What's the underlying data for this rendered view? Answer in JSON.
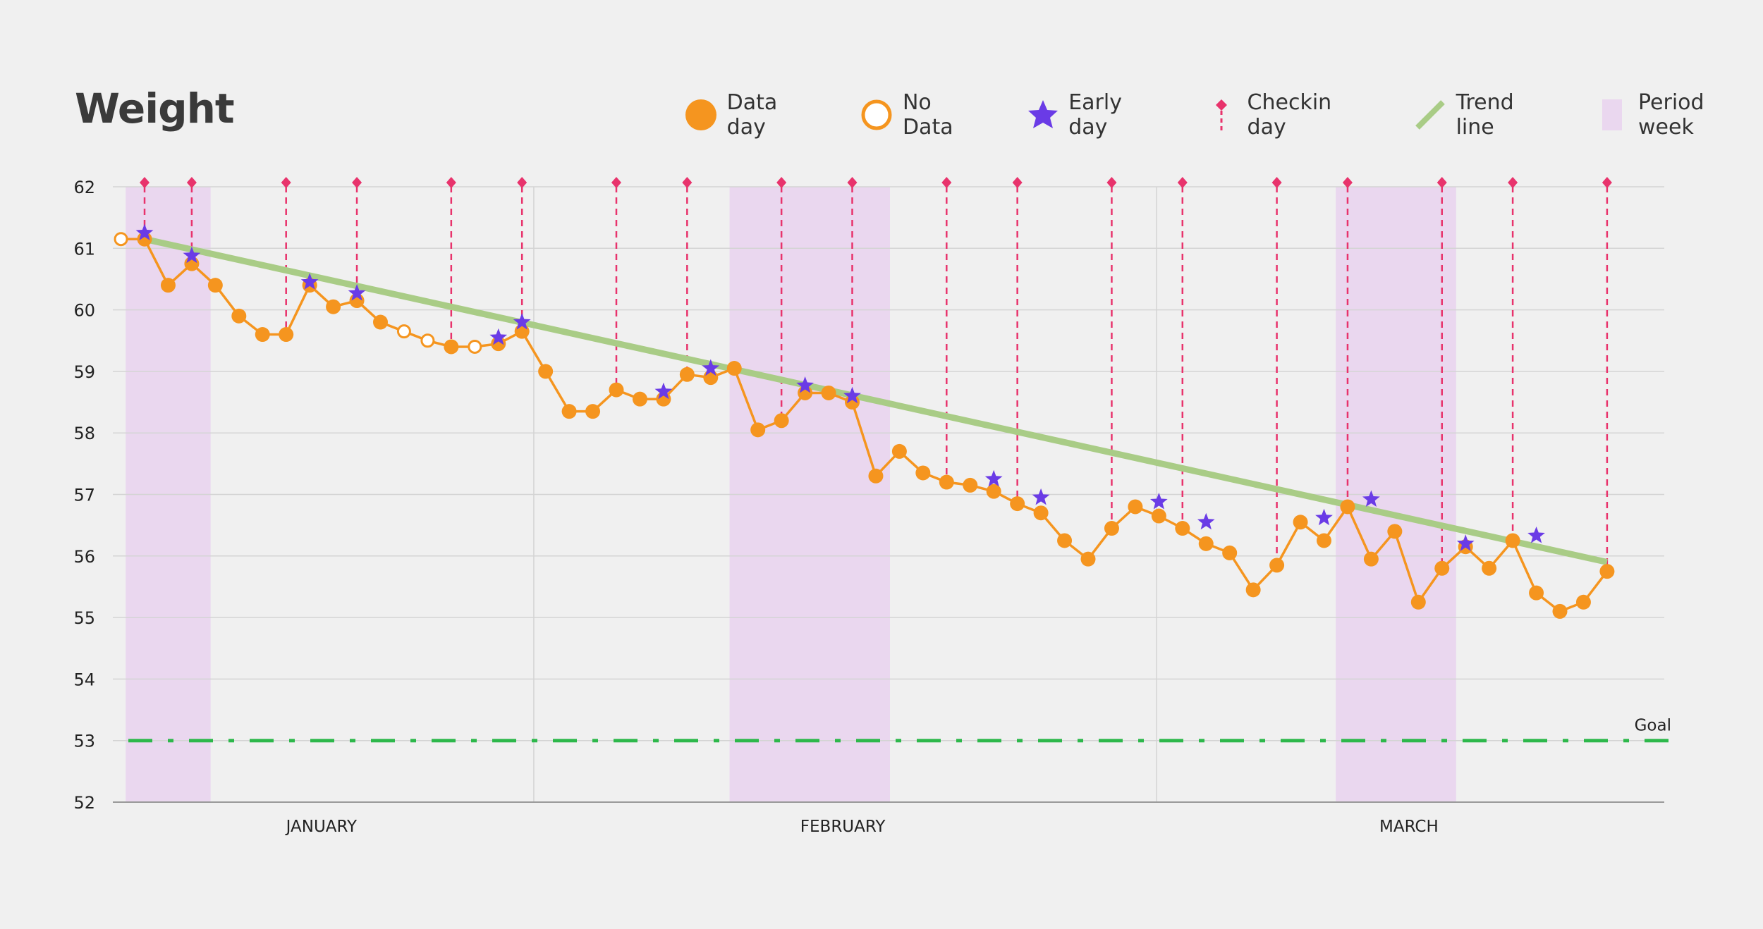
{
  "title": "Weight",
  "legend": [
    {
      "key": "data",
      "label": "Data day",
      "icon": "orange-filled-circle"
    },
    {
      "key": "nodata",
      "label": "No Data",
      "icon": "orange-hollow-circle"
    },
    {
      "key": "early",
      "label": "Early day",
      "icon": "purple-star"
    },
    {
      "key": "checkin",
      "label": "Checkin day",
      "icon": "pink-diamond-dashed-line"
    },
    {
      "key": "trend",
      "label": "Trend line",
      "icon": "green-diagonal-line"
    },
    {
      "key": "period",
      "label": "Period week",
      "icon": "lavender-rectangle"
    }
  ],
  "colors": {
    "data": "#f5951f",
    "early": "#6a3be6",
    "checkin": "#e8336c",
    "trend": "#a9cc86",
    "period": "#ead7ef",
    "goal": "#2db84b",
    "grid": "#d4d4d4",
    "axis": "#999999",
    "text": "#222222"
  },
  "chart_data": {
    "type": "line",
    "ylim": [
      52,
      62
    ],
    "yticks": [
      62,
      61,
      60,
      59,
      58,
      57,
      56,
      55,
      54,
      53,
      52
    ],
    "xlim": [
      -1,
      64
    ],
    "month_labels": [
      {
        "label": "JANUARY",
        "x": 7.5
      },
      {
        "label": "FEBRUARY",
        "x": 29.6
      },
      {
        "label": "MARCH",
        "x": 53.6
      }
    ],
    "month_dividers": [
      16.5,
      42.9
    ],
    "goal": {
      "label": "Goal",
      "value": 53
    },
    "trend": {
      "x": [
        0,
        62
      ],
      "y": [
        61.15,
        55.9
      ]
    },
    "period_weeks": [
      [
        -0.8,
        2.8
      ],
      [
        24.8,
        31.6
      ],
      [
        50.5,
        55.6
      ]
    ],
    "checkin_days": [
      0,
      2,
      6,
      9,
      13,
      16,
      20,
      23,
      27,
      30,
      34,
      37,
      41,
      44,
      48,
      51,
      55,
      58,
      62
    ],
    "series": {
      "x": [
        -1,
        0,
        1,
        2,
        3,
        4,
        5,
        6,
        7,
        8,
        9,
        10,
        11,
        12,
        13,
        14,
        15,
        16,
        17,
        18,
        19,
        20,
        21,
        22,
        23,
        24,
        25,
        26,
        27,
        28,
        29,
        30,
        31,
        32,
        33,
        34,
        35,
        36,
        37,
        38,
        39,
        40,
        41,
        42,
        43,
        44,
        45,
        46,
        47,
        48,
        49,
        50,
        51,
        52,
        53,
        54,
        55,
        56,
        57,
        58,
        59,
        60,
        61,
        62
      ],
      "y": [
        61.15,
        61.15,
        60.4,
        60.75,
        60.4,
        59.9,
        59.6,
        59.6,
        60.4,
        60.05,
        60.15,
        59.8,
        59.65,
        59.5,
        59.4,
        59.4,
        59.45,
        59.65,
        59.0,
        58.35,
        58.35,
        58.7,
        58.55,
        58.55,
        58.95,
        58.9,
        59.05,
        58.05,
        58.2,
        58.65,
        58.65,
        58.5,
        57.3,
        57.7,
        57.35,
        57.2,
        57.15,
        57.05,
        56.85,
        56.7,
        56.25,
        55.95,
        56.45,
        56.8,
        56.65,
        56.45,
        56.2,
        56.05,
        55.45,
        55.85,
        56.55,
        56.25,
        56.8,
        55.95,
        56.4,
        55.25,
        55.8,
        56.15,
        55.8,
        56.25,
        55.4,
        55.1,
        55.25,
        55.75
      ],
      "status": [
        "nodata",
        "data",
        "data",
        "data",
        "data",
        "data",
        "data",
        "data",
        "data",
        "data",
        "data",
        "data",
        "nodata",
        "nodata",
        "data",
        "nodata",
        "data",
        "data",
        "data",
        "data",
        "data",
        "data",
        "data",
        "data",
        "data",
        "data",
        "data",
        "data",
        "data",
        "data",
        "data",
        "data",
        "data",
        "data",
        "data",
        "data",
        "data",
        "data",
        "data",
        "data",
        "data",
        "data",
        "data",
        "data",
        "data",
        "data",
        "data",
        "data",
        "data",
        "data",
        "data",
        "data",
        "data",
        "data",
        "data",
        "data",
        "data",
        "data",
        "data",
        "data",
        "data",
        "data",
        "data",
        "data"
      ]
    },
    "early_days": [
      {
        "x": 0,
        "y": 61.25
      },
      {
        "x": 2,
        "y": 60.88
      },
      {
        "x": 7,
        "y": 60.45
      },
      {
        "x": 9,
        "y": 60.27
      },
      {
        "x": 15,
        "y": 59.55
      },
      {
        "x": 16,
        "y": 59.8
      },
      {
        "x": 22,
        "y": 58.67
      },
      {
        "x": 24,
        "y": 59.05
      },
      {
        "x": 28,
        "y": 58.77
      },
      {
        "x": 30,
        "y": 58.6
      },
      {
        "x": 36,
        "y": 57.25
      },
      {
        "x": 38,
        "y": 56.95
      },
      {
        "x": 43,
        "y": 56.88
      },
      {
        "x": 45,
        "y": 56.55
      },
      {
        "x": 50,
        "y": 56.62
      },
      {
        "x": 52,
        "y": 56.92
      },
      {
        "x": 56,
        "y": 56.2
      },
      {
        "x": 59,
        "y": 56.33
      }
    ]
  }
}
